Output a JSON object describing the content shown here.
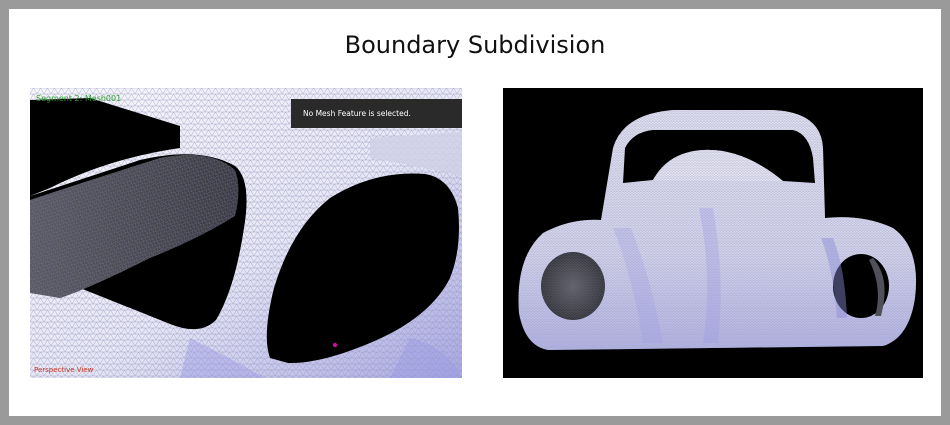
{
  "title": "Boundary Subdivision",
  "left_view": {
    "segment_label": "Segment 2: Mesh001",
    "notice": "No Mesh Feature is selected.",
    "view_label": "Perspective View"
  },
  "colors": {
    "mesh_light": "#f2f2fa",
    "mesh_shade": "#9a9ae0",
    "hole": "#000000",
    "marker": "#c0169a",
    "segment_text": "#2e9d2e",
    "view_text": "#c83a2a"
  },
  "icons": {
    "selection_marker": "selection-point-icon"
  }
}
